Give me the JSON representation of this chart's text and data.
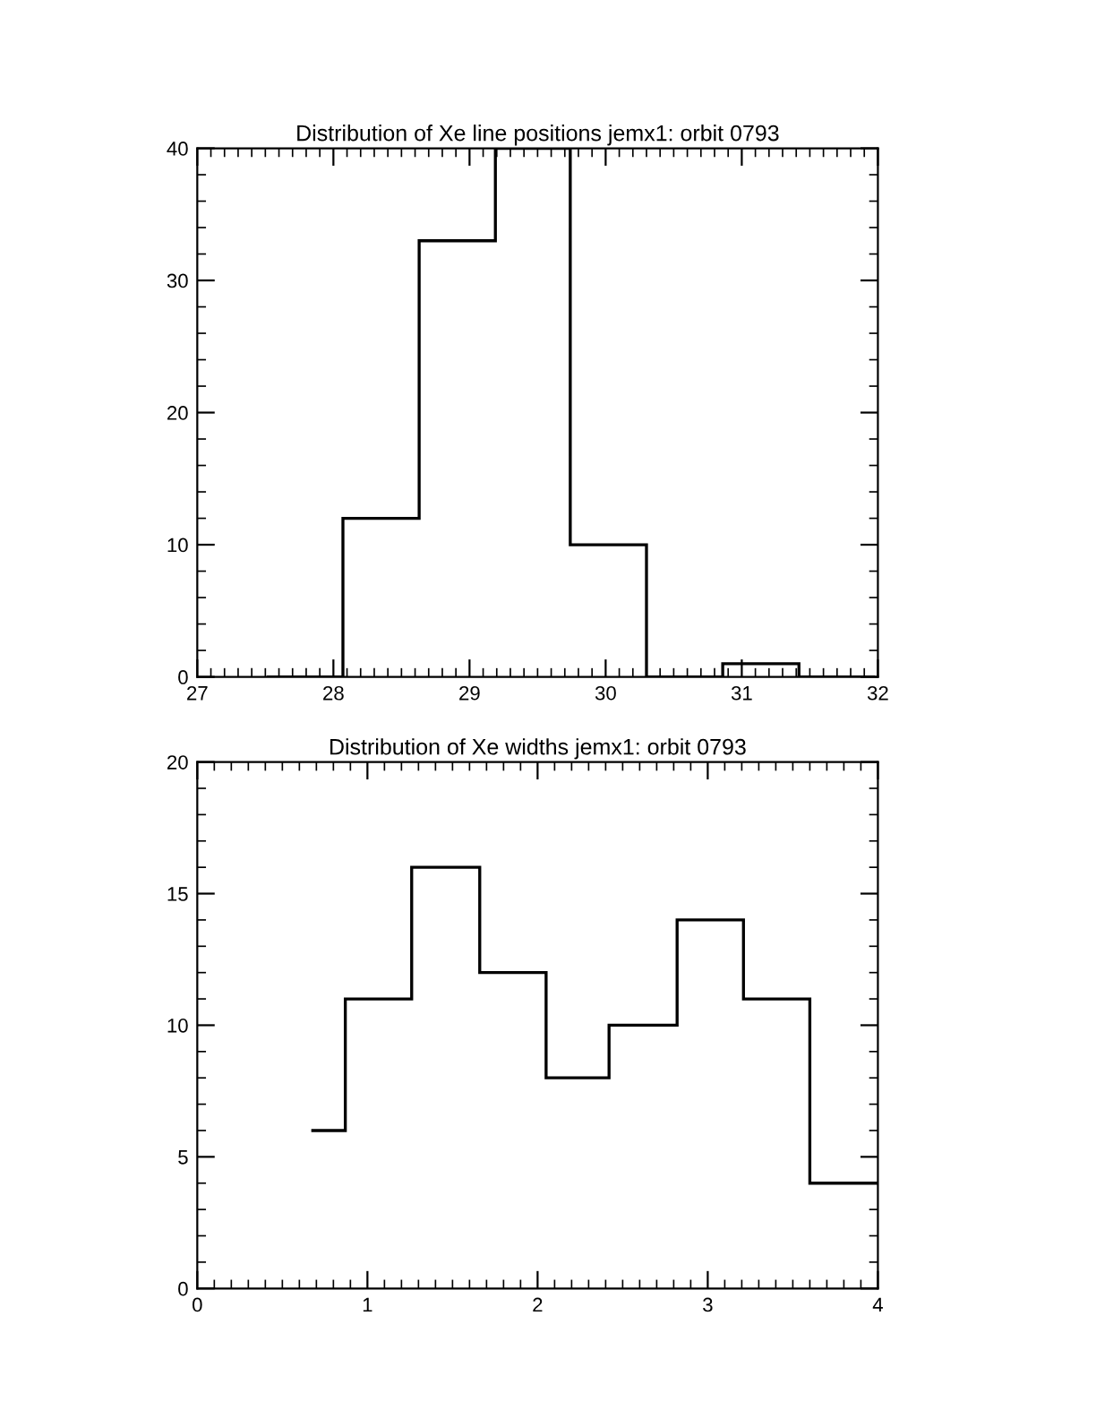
{
  "chart_data": [
    {
      "type": "histogram",
      "title": "Distribution of Xe line positions jemx1: orbit 0793",
      "bins": [
        27.51,
        28.07,
        28.63,
        29.19,
        29.74,
        30.3,
        30.86,
        31.42,
        31.98
      ],
      "values": [
        0,
        12,
        33,
        40,
        10,
        0,
        1,
        0
      ],
      "color": "#000000",
      "xlim": [
        27,
        32
      ],
      "xticks": [
        27,
        28,
        29,
        30,
        31,
        32
      ],
      "ylim": [
        0,
        40
      ],
      "yticks": [
        0,
        10,
        20,
        30,
        40
      ],
      "grid": false
    },
    {
      "type": "histogram",
      "title": "Distribution of Xe widths jemx1: orbit 0793",
      "bins": [
        0.67,
        0.87,
        1.26,
        1.66,
        2.05,
        2.42,
        2.82,
        3.21,
        3.6,
        4.0
      ],
      "values": [
        6,
        11,
        16,
        12,
        8,
        10,
        14,
        11,
        4
      ],
      "color": "#000000",
      "xlim": [
        0,
        4
      ],
      "xticks": [
        0,
        1,
        2,
        3,
        4
      ],
      "ylim": [
        0,
        20
      ],
      "yticks": [
        0,
        5,
        10,
        15,
        20
      ],
      "grid": false
    }
  ]
}
